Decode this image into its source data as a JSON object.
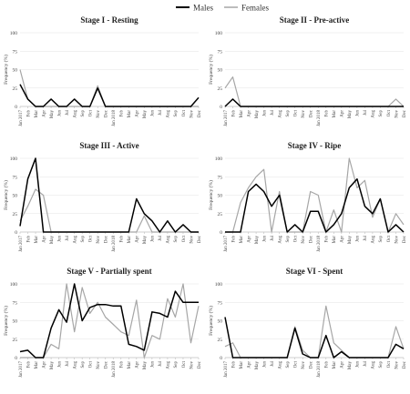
{
  "legend": [
    {
      "name": "Males",
      "color": "#000000"
    },
    {
      "name": "Females",
      "color": "#a6a6a6"
    }
  ],
  "axis_months": [
    "Jan 2017",
    "Feb",
    "Mar",
    "Apr",
    "May",
    "Jun",
    "Jul",
    "Aug",
    "Sep",
    "Oct",
    "Nov",
    "Dec",
    "Jan 2018",
    "Feb",
    "Mar",
    "Apr",
    "May",
    "Jun",
    "Jul",
    "Aug",
    "Sep",
    "Oct",
    "Nov",
    "Dec"
  ],
  "chart_data": [
    {
      "type": "line",
      "title": "Stage I - Resting",
      "ylabel": "Frequency (%)",
      "ylim": [
        0,
        100
      ],
      "yticks": [
        0,
        25,
        50,
        75,
        100
      ],
      "categories": [
        "Jan 2017",
        "Feb",
        "Mar",
        "Apr",
        "May",
        "Jun",
        "Jul",
        "Aug",
        "Sep",
        "Oct",
        "Nov",
        "Dec",
        "Jan 2018",
        "Feb",
        "Mar",
        "Apr",
        "May",
        "Jun",
        "Jul",
        "Aug",
        "Sep",
        "Oct",
        "Nov",
        "Dec"
      ],
      "series": [
        {
          "name": "Males",
          "values": [
            30,
            10,
            0,
            0,
            10,
            0,
            0,
            10,
            0,
            0,
            25,
            0,
            0,
            0,
            0,
            0,
            0,
            0,
            0,
            0,
            0,
            0,
            0,
            12
          ]
        },
        {
          "name": "Females",
          "values": [
            50,
            10,
            0,
            0,
            0,
            0,
            0,
            0,
            0,
            0,
            28,
            0,
            0,
            0,
            0,
            0,
            0,
            0,
            0,
            0,
            0,
            0,
            0,
            0
          ]
        }
      ]
    },
    {
      "type": "line",
      "title": "Stage II - Pre-active",
      "ylabel": "Frequency (%)",
      "ylim": [
        0,
        100
      ],
      "yticks": [
        0,
        25,
        50,
        75,
        100
      ],
      "categories": [
        "Jan 2017",
        "Feb",
        "Mar",
        "Apr",
        "May",
        "Jun",
        "Jul",
        "Aug",
        "Sep",
        "Oct",
        "Nov",
        "Dec",
        "Jan 2018",
        "Feb",
        "Mar",
        "Apr",
        "May",
        "Jun",
        "Jul",
        "Aug",
        "Sep",
        "Oct",
        "Nov",
        "Dec"
      ],
      "series": [
        {
          "name": "Males",
          "values": [
            0,
            10,
            0,
            0,
            0,
            0,
            0,
            0,
            0,
            0,
            0,
            0,
            0,
            0,
            0,
            0,
            0,
            0,
            0,
            0,
            0,
            0,
            0,
            0
          ]
        },
        {
          "name": "Females",
          "values": [
            25,
            40,
            0,
            0,
            0,
            0,
            0,
            0,
            0,
            0,
            0,
            0,
            0,
            0,
            0,
            0,
            0,
            0,
            0,
            0,
            0,
            0,
            10,
            0
          ]
        }
      ]
    },
    {
      "type": "line",
      "title": "Stage III - Active",
      "ylabel": "Frequency (%)",
      "ylim": [
        0,
        100
      ],
      "yticks": [
        0,
        25,
        50,
        75,
        100
      ],
      "categories": [
        "Jan 2017",
        "Feb",
        "Mar",
        "Apr",
        "May",
        "Jun",
        "Jul",
        "Aug",
        "Sep",
        "Oct",
        "Nov",
        "Dec",
        "Jan 2018",
        "Feb",
        "Mar",
        "Apr",
        "May",
        "Jun",
        "Jul",
        "Aug",
        "Sep",
        "Oct",
        "Nov",
        "Dec"
      ],
      "series": [
        {
          "name": "Males",
          "values": [
            8,
            72,
            100,
            0,
            0,
            0,
            0,
            0,
            0,
            0,
            0,
            0,
            0,
            0,
            0,
            45,
            25,
            15,
            0,
            15,
            0,
            10,
            0,
            0
          ]
        },
        {
          "name": "Females",
          "values": [
            15,
            35,
            58,
            50,
            0,
            0,
            0,
            0,
            0,
            0,
            0,
            0,
            0,
            0,
            0,
            0,
            22,
            0,
            0,
            0,
            0,
            0,
            0,
            0
          ]
        }
      ]
    },
    {
      "type": "line",
      "title": "Stage IV - Ripe",
      "ylabel": "Frequency (%)",
      "ylim": [
        0,
        100
      ],
      "yticks": [
        0,
        25,
        50,
        75,
        100
      ],
      "categories": [
        "Jan 2017",
        "Feb",
        "Mar",
        "Apr",
        "May",
        "Jun",
        "Jul",
        "Aug",
        "Sep",
        "Oct",
        "Nov",
        "Dec",
        "Jan 2018",
        "Feb",
        "Mar",
        "Apr",
        "May",
        "Jun",
        "Jul",
        "Aug",
        "Sep",
        "Oct",
        "Nov",
        "Dec"
      ],
      "series": [
        {
          "name": "Males",
          "values": [
            0,
            0,
            0,
            55,
            65,
            55,
            35,
            50,
            0,
            10,
            0,
            28,
            28,
            0,
            10,
            25,
            60,
            72,
            35,
            25,
            45,
            0,
            10,
            0
          ]
        },
        {
          "name": "Females",
          "values": [
            0,
            0,
            40,
            60,
            75,
            85,
            0,
            55,
            0,
            0,
            0,
            55,
            50,
            0,
            30,
            0,
            100,
            60,
            70,
            20,
            45,
            0,
            25,
            10
          ]
        }
      ]
    },
    {
      "type": "line",
      "title": "Stage V - Partially spent",
      "ylabel": "Frequency (%)",
      "ylim": [
        0,
        100
      ],
      "yticks": [
        0,
        25,
        50,
        75,
        100
      ],
      "categories": [
        "Jan 2017",
        "Feb",
        "Mar",
        "Apr",
        "May",
        "Jun",
        "Jul",
        "Aug",
        "Sep",
        "Oct",
        "Nov",
        "Dec",
        "Jan 2018",
        "Feb",
        "Mar",
        "Apr",
        "May",
        "Jun",
        "Jul",
        "Aug",
        "Sep",
        "Oct",
        "Nov",
        "Dec"
      ],
      "series": [
        {
          "name": "Males",
          "values": [
            8,
            10,
            0,
            0,
            40,
            65,
            48,
            100,
            50,
            68,
            72,
            72,
            70,
            70,
            18,
            15,
            10,
            62,
            60,
            55,
            90,
            75,
            75,
            75
          ]
        },
        {
          "name": "Females",
          "values": [
            0,
            0,
            0,
            0,
            18,
            12,
            100,
            35,
            95,
            60,
            75,
            55,
            45,
            35,
            30,
            78,
            0,
            30,
            25,
            80,
            55,
            100,
            20,
            70
          ]
        }
      ]
    },
    {
      "type": "line",
      "title": "Stage VI - Spent",
      "ylabel": "Frequency (%)",
      "ylim": [
        0,
        100
      ],
      "yticks": [
        0,
        25,
        50,
        75,
        100
      ],
      "categories": [
        "Jan 2017",
        "Feb",
        "Mar",
        "Apr",
        "May",
        "Jun",
        "Jul",
        "Aug",
        "Sep",
        "Oct",
        "Nov",
        "Dec",
        "Jan 2018",
        "Feb",
        "Mar",
        "Apr",
        "May",
        "Jun",
        "Jul",
        "Aug",
        "Sep",
        "Oct",
        "Nov",
        "Dec"
      ],
      "series": [
        {
          "name": "Males",
          "values": [
            55,
            0,
            0,
            0,
            0,
            0,
            0,
            0,
            0,
            40,
            5,
            0,
            0,
            30,
            0,
            8,
            0,
            0,
            0,
            0,
            0,
            0,
            18,
            12
          ]
        },
        {
          "name": "Females",
          "values": [
            15,
            20,
            0,
            0,
            0,
            0,
            0,
            0,
            0,
            42,
            10,
            0,
            0,
            70,
            20,
            10,
            0,
            0,
            0,
            0,
            0,
            0,
            42,
            12
          ]
        }
      ]
    }
  ]
}
